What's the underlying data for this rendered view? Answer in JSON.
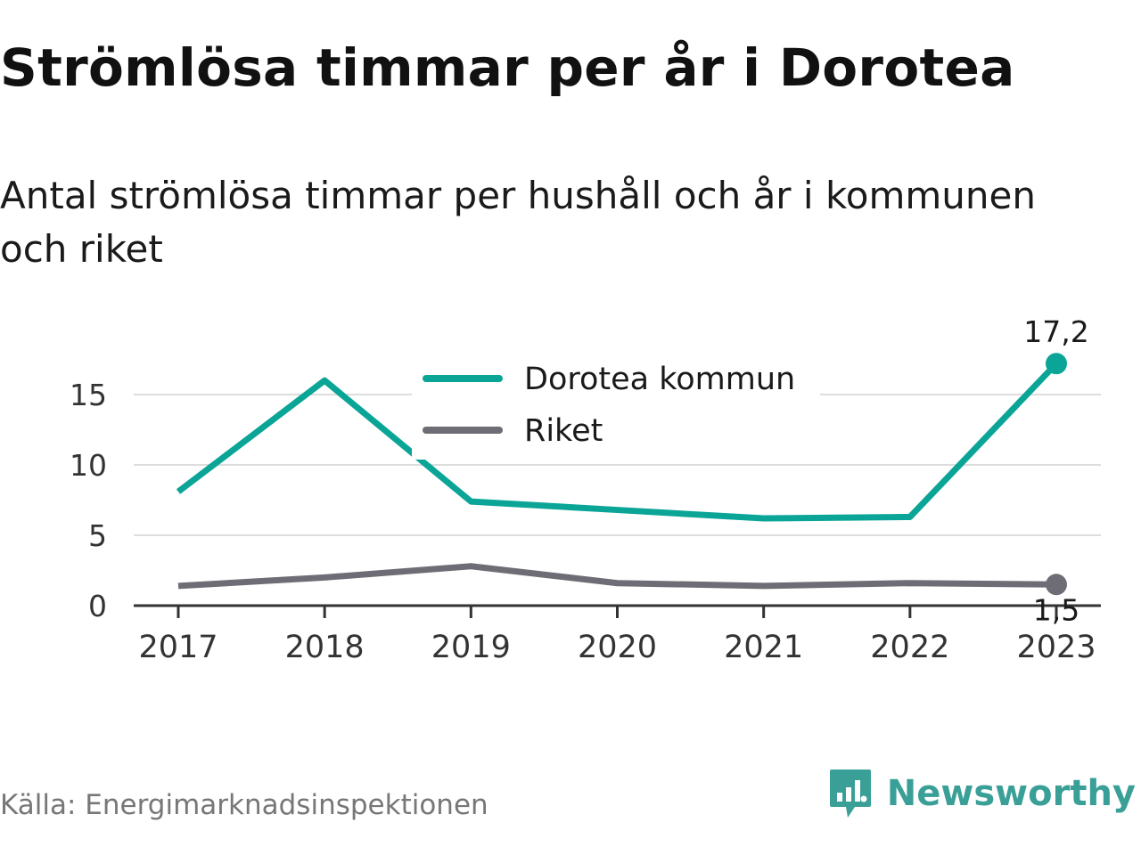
{
  "header": {
    "title": "Strömlösa timmar per år i Dorotea",
    "subtitle": "Antal strömlösa timmar per hushåll och år i kommunen och riket"
  },
  "chart_data": {
    "type": "line",
    "x": [
      "2017",
      "2018",
      "2019",
      "2020",
      "2021",
      "2022",
      "2023"
    ],
    "series": [
      {
        "name": "Dorotea kommun",
        "color": "#0aa597",
        "values": [
          8.1,
          16.0,
          7.4,
          6.8,
          6.2,
          6.3,
          17.2
        ],
        "end_label": "17,2"
      },
      {
        "name": "Riket",
        "color": "#6e6d75",
        "values": [
          1.4,
          2.0,
          2.8,
          1.6,
          1.4,
          1.6,
          1.5
        ],
        "end_label": "1,5"
      }
    ],
    "yticks": [
      "0",
      "5",
      "10",
      "15"
    ],
    "ylim": [
      0,
      18
    ],
    "grid": true,
    "legend_position": "top-center"
  },
  "footer": {
    "source": "Källa: Energimarknadsinspektionen",
    "brand": "Newsworthy",
    "brand_color": "#3aa097"
  }
}
